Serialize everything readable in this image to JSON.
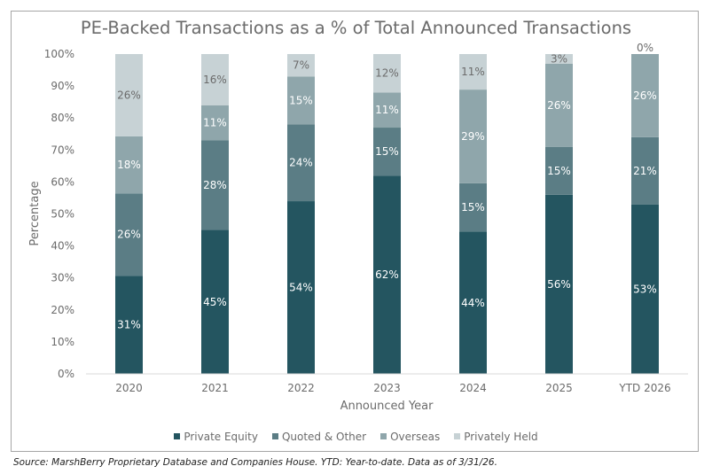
{
  "chart_data": {
    "type": "bar",
    "stacked": true,
    "title": "PE-Backed Transactions as a % of Total Announced Transactions",
    "xlabel": "Announced Year",
    "ylabel": "Percentage",
    "ylim": [
      0,
      100
    ],
    "yticks": [
      "0%",
      "10%",
      "20%",
      "30%",
      "40%",
      "50%",
      "60%",
      "70%",
      "80%",
      "90%",
      "100%"
    ],
    "categories": [
      "2020",
      "2021",
      "2022",
      "2023",
      "2024",
      "2025",
      "YTD 2026"
    ],
    "series": [
      {
        "name": "Private Equity",
        "color": "#245560",
        "label_color": "#ffffff",
        "values": [
          31,
          45,
          54,
          62,
          44,
          56,
          53
        ]
      },
      {
        "name": "Quoted & Other",
        "color": "#5b7d85",
        "label_color": "#ffffff",
        "values": [
          26,
          28,
          24,
          15,
          15,
          15,
          21
        ]
      },
      {
        "name": "Overseas",
        "color": "#8fa6ab",
        "label_color": "#ffffff",
        "values": [
          18,
          11,
          15,
          11,
          29,
          26,
          26
        ]
      },
      {
        "name": "Privately Held",
        "color": "#c7d2d5",
        "label_color": "#6b6b6b",
        "values": [
          26,
          16,
          7,
          12,
          11,
          3,
          0
        ]
      }
    ],
    "legend_position": "bottom",
    "grid": false
  },
  "source": "Source: MarshBerry Proprietary Database and Companies House. YTD: Year-to-date. Data as of 3/31/26."
}
